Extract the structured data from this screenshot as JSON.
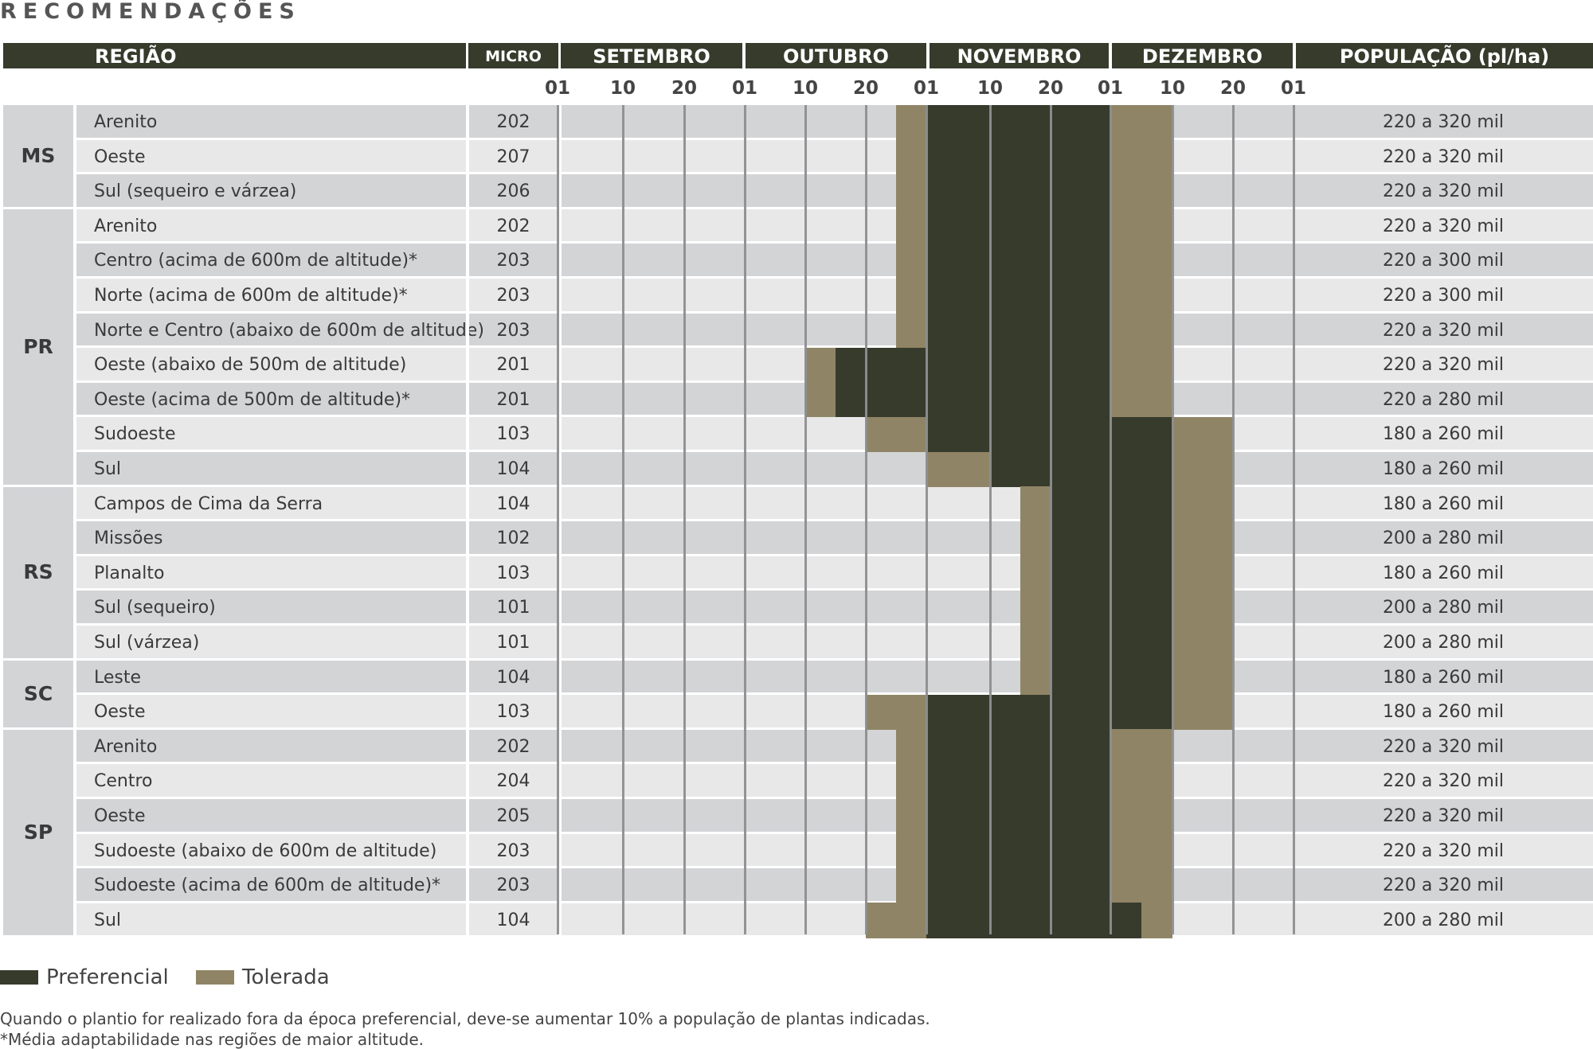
{
  "title": "RECOMENDAÇÕES",
  "headers": {
    "regiao": "REGIÃO",
    "micro": "MICRO",
    "setembro": "SETEMBRO",
    "outubro": "OUTUBRO",
    "novembro": "NOVEMBRO",
    "dezembro": "DEZEMBRO",
    "populacao": "POPULAÇÃO (pl/ha)"
  },
  "day_ticks": [
    "01",
    "10",
    "20",
    "01",
    "10",
    "20",
    "01",
    "10",
    "20",
    "01",
    "10",
    "20",
    "01"
  ],
  "colors": {
    "preferencial": "#373b2c",
    "tolerada": "#8f8566",
    "header": "#373b2c"
  },
  "rows": [
    {
      "name": "Arenito",
      "micro": "202",
      "pop": "220 a 320 mil",
      "tol1": [
        5.5,
        6
      ],
      "pref": [
        6,
        9
      ],
      "tol2": [
        9,
        10
      ]
    },
    {
      "name": "Oeste",
      "micro": "207",
      "pop": "220 a 320 mil",
      "tol1": [
        5.5,
        6
      ],
      "pref": [
        6,
        9
      ],
      "tol2": [
        9,
        10
      ]
    },
    {
      "name": "Sul (sequeiro e várzea)",
      "micro": "206",
      "pop": "220 a 320 mil",
      "tol1": [
        5.5,
        6
      ],
      "pref": [
        6,
        9
      ],
      "tol2": [
        9,
        10
      ]
    },
    {
      "name": "Arenito",
      "micro": "202",
      "pop": "220 a 320 mil",
      "tol1": [
        5.5,
        6
      ],
      "pref": [
        6,
        9
      ],
      "tol2": [
        9,
        10
      ]
    },
    {
      "name": "Centro (acima de 600m de altitude)*",
      "micro": "203",
      "pop": "220 a 300 mil",
      "tol1": [
        5.5,
        6
      ],
      "pref": [
        6,
        9
      ],
      "tol2": [
        9,
        10
      ]
    },
    {
      "name": "Norte (acima de 600m de altitude)*",
      "micro": "203",
      "pop": "220 a 300 mil",
      "tol1": [
        5.5,
        6
      ],
      "pref": [
        6,
        9
      ],
      "tol2": [
        9,
        10
      ]
    },
    {
      "name": "Norte e Centro (abaixo de 600m de altitude)",
      "micro": "203",
      "pop": "220 a 320 mil",
      "tol1": [
        5.5,
        6
      ],
      "pref": [
        6,
        9
      ],
      "tol2": [
        9,
        10
      ]
    },
    {
      "name": "Oeste (abaixo de 500m de altitude)",
      "micro": "201",
      "pop": "220 a 320 mil",
      "tol1": [
        4,
        4.5
      ],
      "pref": [
        4.5,
        9
      ],
      "tol2": [
        9,
        10
      ]
    },
    {
      "name": "Oeste (acima de 500m de altitude)*",
      "micro": "201",
      "pop": "220 a 280 mil",
      "tol1": [
        4,
        4.5
      ],
      "pref": [
        4.5,
        9
      ],
      "tol2": [
        9,
        10
      ]
    },
    {
      "name": "Sudoeste",
      "micro": "103",
      "pop": "180 a 260 mil",
      "tol1": [
        5,
        6
      ],
      "pref": [
        6,
        10
      ],
      "tol2": [
        10,
        11
      ]
    },
    {
      "name": "Sul",
      "micro": "104",
      "pop": "180 a 260 mil",
      "tol1": [
        6,
        7
      ],
      "pref": [
        7,
        10
      ],
      "tol2": [
        10,
        11
      ]
    },
    {
      "name": "Campos de Cima da Serra",
      "micro": "104",
      "pop": "180 a 260 mil",
      "tol1": [
        7.5,
        8
      ],
      "pref": [
        8,
        10
      ],
      "tol2": [
        10,
        11
      ]
    },
    {
      "name": "Missões",
      "micro": "102",
      "pop": "200 a 280 mil",
      "tol1": [
        7.5,
        8
      ],
      "pref": [
        8,
        10
      ],
      "tol2": [
        10,
        11
      ]
    },
    {
      "name": "Planalto",
      "micro": "103",
      "pop": "180 a 260 mil",
      "tol1": [
        7.5,
        8
      ],
      "pref": [
        8,
        10
      ],
      "tol2": [
        10,
        11
      ]
    },
    {
      "name": "Sul (sequeiro)",
      "micro": "101",
      "pop": "200 a 280 mil",
      "tol1": [
        7.5,
        8
      ],
      "pref": [
        8,
        10
      ],
      "tol2": [
        10,
        11
      ]
    },
    {
      "name": "Sul (várzea)",
      "micro": "101",
      "pop": "200 a 280 mil",
      "tol1": [
        7.5,
        8
      ],
      "pref": [
        8,
        10
      ],
      "tol2": [
        10,
        11
      ]
    },
    {
      "name": "Leste",
      "micro": "104",
      "pop": "180 a 260 mil",
      "tol1": [
        7.5,
        8
      ],
      "pref": [
        8,
        10
      ],
      "tol2": [
        10,
        11
      ]
    },
    {
      "name": "Oeste",
      "micro": "103",
      "pop": "180 a 260 mil",
      "tol1": [
        5,
        6
      ],
      "pref": [
        6,
        10
      ],
      "tol2": [
        10,
        11
      ]
    },
    {
      "name": "Arenito",
      "micro": "202",
      "pop": "220 a 320 mil",
      "tol1": [
        5.5,
        6
      ],
      "pref": [
        6,
        9
      ],
      "tol2": [
        9,
        10
      ]
    },
    {
      "name": "Centro",
      "micro": "204",
      "pop": "220 a 320 mil",
      "tol1": [
        5.5,
        6
      ],
      "pref": [
        6,
        9
      ],
      "tol2": [
        9,
        10
      ]
    },
    {
      "name": "Oeste",
      "micro": "205",
      "pop": "220 a 320 mil",
      "tol1": [
        5.5,
        6
      ],
      "pref": [
        6,
        9
      ],
      "tol2": [
        9,
        10
      ]
    },
    {
      "name": "Sudoeste (abaixo de 600m de altitude)",
      "micro": "203",
      "pop": "220 a 320 mil",
      "tol1": [
        5.5,
        6
      ],
      "pref": [
        6,
        9
      ],
      "tol2": [
        9,
        10
      ]
    },
    {
      "name": "Sudoeste (acima de 600m de altitude)*",
      "micro": "203",
      "pop": "220 a 320 mil",
      "tol1": [
        5.5,
        6
      ],
      "pref": [
        6,
        9
      ],
      "tol2": [
        9,
        10
      ]
    },
    {
      "name": "Sul",
      "micro": "104",
      "pop": "200 a 280 mil",
      "tol1": [
        5,
        6
      ],
      "pref": [
        6,
        9.5
      ],
      "tol2": [
        9.5,
        10
      ]
    }
  ],
  "regions": [
    {
      "label": "MS",
      "start": 0,
      "count": 3
    },
    {
      "label": "PR",
      "start": 3,
      "count": 8
    },
    {
      "label": "RS",
      "start": 11,
      "count": 5
    },
    {
      "label": "SC",
      "start": 16,
      "count": 2
    },
    {
      "label": "SP",
      "start": 18,
      "count": 6
    }
  ],
  "legend": {
    "preferencial": "Preferencial",
    "tolerada": "Tolerada"
  },
  "notes": [
    "Quando o plantio for realizado fora da época preferencial, deve-se aumentar 10% a população de plantas indicadas.",
    "*Média adaptabilidade nas regiões de maior altitude."
  ]
}
